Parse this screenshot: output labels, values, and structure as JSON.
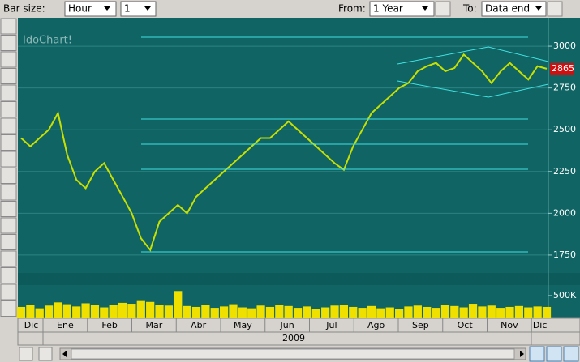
{
  "toolbar": {
    "bar_size_label": "Bar size:",
    "bar_size": "Hour",
    "bar_count": "1",
    "from_label": "From:",
    "from": "1 Year",
    "to_label": "To:",
    "to": "Data end"
  },
  "chart_data": [
    {
      "type": "line",
      "title": "IdoChart!",
      "color": "#c8e000",
      "values": [
        2450,
        2400,
        2450,
        2500,
        2600,
        2350,
        2200,
        2150,
        2250,
        2300,
        2200,
        2100,
        2000,
        1850,
        1780,
        1950,
        2000,
        2050,
        2000,
        2100,
        2150,
        2200,
        2250,
        2300,
        2350,
        2400,
        2450,
        2450,
        2500,
        2550,
        2500,
        2450,
        2400,
        2350,
        2300,
        2260,
        2400,
        2500,
        2600,
        2650,
        2700,
        2750,
        2780,
        2850,
        2880,
        2900,
        2850,
        2870,
        2950,
        2900,
        2850,
        2780,
        2850,
        2900,
        2850,
        2800,
        2880,
        2865
      ],
      "ylim": [
        1643,
        3170
      ],
      "yticks": [
        1750,
        2000,
        2250,
        2500,
        2750,
        3000
      ],
      "grid": true,
      "last_price": 2865,
      "month_labels": [
        "Dic",
        "Ene",
        "Feb",
        "Mar",
        "Abr",
        "May",
        "Jun",
        "Jul",
        "Ago",
        "Sep",
        "Oct",
        "Nov",
        "Dic"
      ],
      "year_label": "2009"
    },
    {
      "type": "bar",
      "color": "#f0e000",
      "values": [
        250000,
        300000,
        220000,
        280000,
        350000,
        310000,
        260000,
        330000,
        290000,
        240000,
        300000,
        340000,
        320000,
        380000,
        360000,
        300000,
        280000,
        600000,
        270000,
        250000,
        300000,
        230000,
        260000,
        310000,
        240000,
        220000,
        280000,
        250000,
        300000,
        270000,
        230000,
        260000,
        210000,
        240000,
        280000,
        300000,
        250000,
        230000,
        270000,
        220000,
        240000,
        200000,
        260000,
        280000,
        250000,
        230000,
        300000,
        270000,
        240000,
        320000,
        260000,
        280000,
        230000,
        250000,
        270000,
        240000,
        260000,
        250000
      ],
      "ylim": [
        0,
        730000
      ],
      "yticks": [
        {
          "value": 500000,
          "label": "500K"
        }
      ]
    }
  ]
}
